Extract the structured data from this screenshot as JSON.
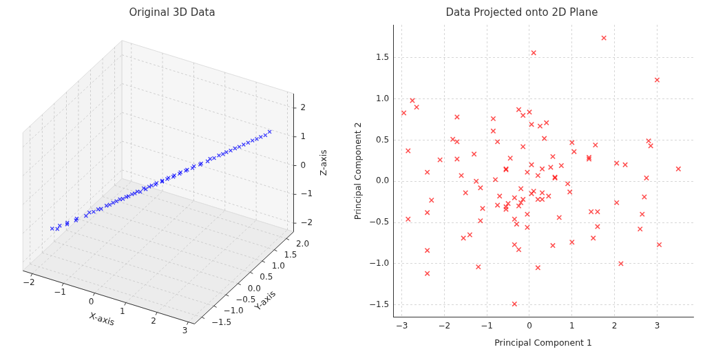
{
  "chart_data": [
    {
      "type": "scatter3d",
      "title": "Original 3D Data",
      "x_label": "X-axis",
      "y_label": "Y-axis",
      "z_label": "Z-axis",
      "x": [
        -1.92,
        -1.8,
        -1.73,
        -1.58,
        -1.55,
        -1.39,
        -1.35,
        -1.16,
        -1.1,
        -0.97,
        -0.91,
        -0.8,
        -0.72,
        -0.61,
        -0.57,
        -0.47,
        -0.43,
        -0.32,
        -0.28,
        -0.2,
        -0.16,
        -0.06,
        -0.04,
        0.06,
        0.1,
        0.18,
        0.22,
        0.31,
        0.37,
        0.41,
        0.52,
        0.54,
        0.63,
        0.68,
        0.76,
        0.8,
        0.9,
        0.94,
        1.04,
        1.09,
        1.19,
        1.23,
        1.36,
        1.4,
        1.52,
        1.57,
        1.69,
        1.76,
        1.88,
        1.93,
        2.05,
        2.12,
        2.24,
        2.31,
        2.43,
        2.5,
        2.63,
        2.69,
        2.82,
        2.88
      ],
      "y": [
        -1.08,
        -1.02,
        -1.01,
        -0.9,
        -0.93,
        -0.78,
        -0.8,
        -0.66,
        -0.6,
        -0.59,
        -0.48,
        -0.5,
        -0.38,
        -0.39,
        -0.3,
        -0.29,
        -0.2,
        -0.22,
        -0.13,
        -0.14,
        -0.05,
        -0.06,
        0.02,
        0.01,
        0.1,
        0.08,
        0.17,
        0.16,
        0.24,
        0.23,
        0.32,
        0.3,
        0.39,
        0.38,
        0.47,
        0.46,
        0.55,
        0.54,
        0.63,
        0.62,
        0.71,
        0.72,
        0.81,
        0.8,
        0.91,
        0.95,
        0.96,
        1.07,
        1.08,
        1.16,
        1.18,
        1.27,
        1.29,
        1.38,
        1.41,
        1.5,
        1.51,
        1.6,
        1.62,
        1.72
      ],
      "z": [
        -1.27,
        -1.29,
        -1.16,
        -1.15,
        -1.06,
        -1.04,
        -0.95,
        -0.9,
        -0.81,
        -0.75,
        -0.73,
        -0.66,
        -0.62,
        -0.54,
        -0.53,
        -0.45,
        -0.44,
        -0.37,
        -0.36,
        -0.3,
        -0.29,
        -0.22,
        -0.21,
        -0.18,
        -0.11,
        -0.1,
        -0.07,
        0.01,
        0.0,
        0.07,
        0.09,
        0.14,
        0.16,
        0.23,
        0.22,
        0.29,
        0.31,
        0.38,
        0.4,
        0.46,
        0.48,
        0.55,
        0.58,
        0.64,
        0.67,
        0.74,
        0.8,
        0.83,
        0.91,
        0.93,
        1.01,
        1.04,
        1.12,
        1.15,
        1.23,
        1.26,
        1.35,
        1.37,
        1.46,
        1.52
      ],
      "xlim": [
        -2.3,
        3.2
      ],
      "ylim": [
        -1.8,
        2.3
      ],
      "zlim": [
        -2.3,
        2.5
      ],
      "xticks": [
        {
          "value": -2,
          "label": "−2"
        },
        {
          "value": -1,
          "label": "−1"
        },
        0,
        1,
        2,
        3
      ],
      "yticks": [
        {
          "value": -1.5,
          "label": "−1.5"
        },
        {
          "value": -1,
          "label": "−1.0"
        },
        {
          "value": -0.5,
          "label": "−0.5"
        },
        {
          "value": 0,
          "label": "0.0"
        },
        0.5,
        {
          "value": 1,
          "label": "1.0"
        },
        1.5,
        {
          "value": 2,
          "label": "2.0"
        }
      ],
      "zticks": [
        {
          "value": -2,
          "label": "−2"
        },
        {
          "value": -1,
          "label": "−1"
        },
        0,
        1,
        2
      ],
      "color": "blue",
      "marker": "x",
      "grid": true
    },
    {
      "type": "scatter",
      "title": "Data Projected onto 2D Plane",
      "x_label": "Principal Component 1",
      "y_label": "Principal Component 2",
      "x": [
        -2.95,
        -2.75,
        -2.65,
        -2.85,
        -2.85,
        -2.4,
        -2.3,
        -2.4,
        -2.4,
        -2.4,
        -2.1,
        -1.8,
        -1.7,
        -1.7,
        -1.7,
        -1.6,
        -1.5,
        -1.55,
        -1.4,
        -1.3,
        -1.25,
        -1.15,
        -1.1,
        -1.15,
        -1.2,
        -0.85,
        -0.85,
        -0.75,
        -0.8,
        -0.75,
        -0.7,
        -0.55,
        -0.55,
        -0.55,
        -0.55,
        -0.5,
        -0.45,
        -0.35,
        -0.35,
        -0.3,
        -0.35,
        -0.35,
        -0.25,
        -0.25,
        -0.25,
        -0.2,
        -0.2,
        -0.15,
        -0.15,
        -0.15,
        -0.05,
        -0.05,
        -0.05,
        0.0,
        0.05,
        0.05,
        0.05,
        0.1,
        0.1,
        0.2,
        0.2,
        0.2,
        0.25,
        0.3,
        0.3,
        0.3,
        0.35,
        0.4,
        0.45,
        0.5,
        0.55,
        0.55,
        0.6,
        0.6,
        0.7,
        0.75,
        0.9,
        0.95,
        1.0,
        1.0,
        1.05,
        1.4,
        1.4,
        1.45,
        1.5,
        1.55,
        1.6,
        1.6,
        1.75,
        2.05,
        2.05,
        2.15,
        2.25,
        2.6,
        2.7,
        2.65,
        2.75,
        2.8,
        2.85,
        3.0,
        3.05,
        3.5
      ],
      "y": [
        0.83,
        0.98,
        0.9,
        0.37,
        -0.46,
        0.11,
        -0.23,
        -0.38,
        -0.84,
        -1.12,
        0.26,
        0.51,
        0.78,
        0.48,
        0.27,
        0.07,
        -0.14,
        -0.69,
        -0.65,
        0.33,
        0.0,
        -0.08,
        -0.33,
        -0.48,
        -1.04,
        0.76,
        0.61,
        0.48,
        0.02,
        -0.29,
        -0.18,
        0.14,
        0.15,
        -0.31,
        -0.34,
        -0.27,
        0.28,
        -0.2,
        -0.46,
        -0.52,
        -0.77,
        -1.49,
        0.87,
        -0.3,
        -0.83,
        -0.09,
        -0.26,
        -0.22,
        0.8,
        0.42,
        0.11,
        -0.4,
        -0.56,
        0.84,
        0.2,
        0.69,
        -0.15,
        1.56,
        -0.12,
        0.07,
        -0.22,
        -1.05,
        0.67,
        0.15,
        -0.14,
        -0.22,
        0.52,
        0.71,
        -0.18,
        0.17,
        0.3,
        -0.78,
        0.05,
        0.04,
        -0.44,
        0.19,
        -0.03,
        -0.13,
        0.47,
        -0.74,
        0.36,
        0.29,
        0.27,
        -0.37,
        -0.69,
        0.44,
        -0.37,
        -0.55,
        1.74,
        0.22,
        -0.26,
        -1.0,
        0.2,
        -0.58,
        -0.19,
        -0.4,
        0.04,
        0.49,
        0.43,
        1.23,
        -0.77,
        0.15
      ],
      "xlim": [
        -3.2,
        3.85
      ],
      "ylim": [
        -1.65,
        1.9
      ],
      "xticks": [
        {
          "value": -3,
          "label": "−3"
        },
        {
          "value": -2,
          "label": "−2"
        },
        {
          "value": -1,
          "label": "−1"
        },
        0,
        1,
        2,
        3
      ],
      "yticks": [
        {
          "value": -1.5,
          "label": "−1.5"
        },
        {
          "value": -1,
          "label": "−1.0"
        },
        {
          "value": -0.5,
          "label": "−0.5"
        },
        {
          "value": 0,
          "label": "0.0"
        },
        0.5,
        {
          "value": 1,
          "label": "1.0"
        },
        1.5
      ],
      "color": "red",
      "marker": "x",
      "grid": true
    }
  ]
}
